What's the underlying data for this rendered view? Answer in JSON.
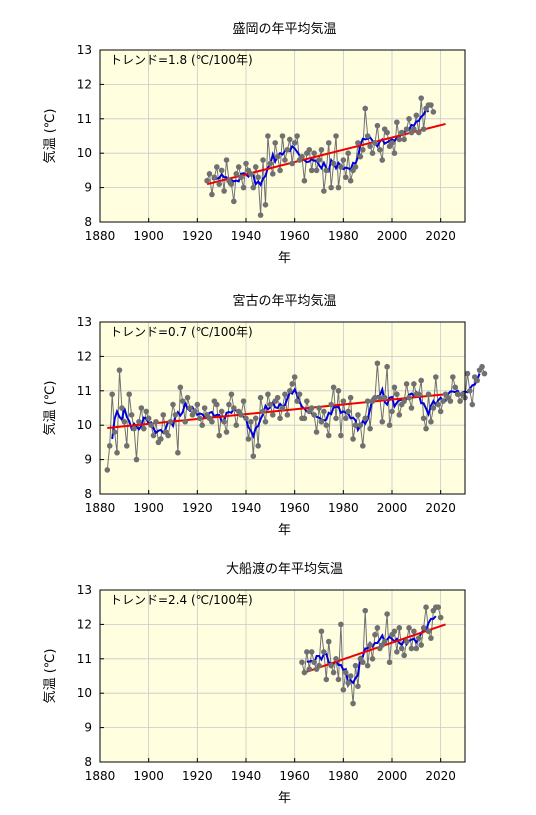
{
  "chart_data": [
    {
      "type": "line",
      "title": "盛岡の年平均気温",
      "trend_label": "トレンド=1.8 (℃/100年)",
      "xlabel": "年",
      "ylabel": "気温 (℃)",
      "xlim": [
        1880,
        2030
      ],
      "ylim": [
        8,
        13
      ],
      "xticks": [
        "1880",
        "1900",
        "1920",
        "1940",
        "1960",
        "1980",
        "2000",
        "2020"
      ],
      "yticks": [
        "8",
        "9",
        "10",
        "11",
        "12",
        "13"
      ],
      "grid": true,
      "colors": {
        "annual": "#707070",
        "moving_avg": "#0000dd",
        "trend": "#ee0000",
        "background": "#ffffe0"
      },
      "series": [
        {
          "kind": "annual",
          "x_start": 1924,
          "values": [
            9.2,
            9.4,
            8.8,
            9.3,
            9.6,
            9.1,
            9.5,
            8.9,
            9.8,
            9.2,
            9.1,
            8.6,
            9.4,
            9.6,
            9.3,
            9.0,
            9.7,
            9.5,
            9.4,
            9.0,
            9.6,
            9.3,
            8.2,
            9.8,
            8.5,
            10.5,
            9.7,
            9.4,
            10.3,
            9.9,
            9.5,
            10.5,
            9.8,
            10.1,
            10.4,
            9.7,
            10.3,
            10.5,
            9.8,
            9.9,
            9.2,
            10.0,
            10.1,
            9.5,
            10.0,
            9.5,
            9.8,
            10.1,
            8.9,
            9.5,
            10.3,
            9.0,
            9.7,
            10.5,
            9.0,
            9.6,
            9.8,
            9.3,
            10.0,
            9.2,
            9.5,
            9.6,
            10.3,
            9.9,
            10.1,
            11.3,
            10.5,
            10.2,
            10.0,
            10.3,
            10.8,
            10.1,
            9.8,
            10.7,
            10.6,
            10.2,
            10.3,
            10.0,
            10.9,
            10.4,
            10.6,
            10.4,
            10.7,
            11.0,
            10.6,
            10.7,
            11.1,
            10.6,
            11.6,
            10.7,
            11.3,
            11.4,
            11.4,
            11.2
          ]
        }
      ],
      "trend_line": {
        "x": [
          1924,
          2022
        ],
        "y": [
          9.1,
          10.85
        ]
      }
    },
    {
      "type": "line",
      "title": "宮古の年平均気温",
      "trend_label": "トレンド=0.7 (℃/100年)",
      "xlabel": "年",
      "ylabel": "気温 (℃)",
      "xlim": [
        1880,
        2030
      ],
      "ylim": [
        8,
        13
      ],
      "xticks": [
        "1880",
        "1900",
        "1920",
        "1940",
        "1960",
        "1980",
        "2000",
        "2020"
      ],
      "yticks": [
        "8",
        "9",
        "10",
        "11",
        "12",
        "13"
      ],
      "grid": true,
      "colors": {
        "annual": "#707070",
        "moving_avg": "#0000dd",
        "trend": "#ee0000",
        "background": "#ffffe0"
      },
      "series": [
        {
          "kind": "annual",
          "x_start": 1883,
          "values": [
            8.7,
            9.4,
            10.9,
            9.8,
            9.2,
            11.6,
            10.5,
            10.1,
            9.4,
            10.9,
            10.3,
            9.9,
            9.0,
            10.1,
            10.5,
            9.9,
            10.4,
            10.2,
            10.0,
            9.7,
            10.1,
            9.5,
            9.6,
            10.3,
            9.8,
            9.7,
            10.1,
            10.6,
            10.3,
            9.2,
            11.1,
            10.7,
            10.1,
            10.8,
            10.5,
            10.3,
            10.4,
            10.6,
            10.2,
            10.0,
            10.5,
            10.3,
            10.2,
            10.1,
            10.7,
            10.6,
            9.7,
            10.4,
            10.1,
            9.8,
            10.6,
            10.9,
            10.5,
            10.0,
            10.4,
            10.3,
            10.7,
            10.2,
            9.6,
            10.1,
            9.1,
            10.2,
            9.4,
            10.8,
            10.4,
            10.1,
            10.9,
            10.6,
            10.3,
            10.7,
            10.8,
            10.2,
            10.5,
            10.9,
            10.3,
            11.0,
            11.2,
            11.4,
            10.7,
            10.9,
            10.2,
            10.2,
            10.7,
            10.4,
            10.5,
            10.3,
            9.8,
            10.5,
            10.1,
            10.4,
            10.0,
            9.7,
            10.6,
            11.1,
            10.2,
            11.0,
            9.7,
            10.7,
            10.2,
            10.4,
            10.8,
            9.6,
            10.0,
            10.3,
            10.0,
            9.4,
            10.2,
            10.7,
            9.9,
            10.7,
            10.8,
            11.8,
            10.8,
            10.1,
            10.8,
            11.7,
            10.0,
            10.4,
            11.1,
            10.9,
            10.3,
            10.6,
            10.7,
            11.2,
            10.8,
            10.5,
            11.2,
            10.9,
            10.9,
            11.3,
            10.2,
            9.9,
            10.9,
            10.1,
            10.5,
            11.4,
            10.6,
            10.4,
            10.7,
            10.9,
            10.8,
            10.7,
            11.4,
            11.1,
            10.9,
            10.7,
            10.9,
            10.8,
            11.5,
            11.0,
            10.6,
            11.4,
            11.3,
            11.6,
            11.7,
            11.5
          ]
        }
      ],
      "trend_line": {
        "x": [
          1883,
          2022
        ],
        "y": [
          9.92,
          10.9
        ]
      }
    },
    {
      "type": "line",
      "title": "大船渡の年平均気温",
      "trend_label": "トレンド=2.4 (℃/100年)",
      "xlabel": "年",
      "ylabel": "気温 (℃)",
      "xlim": [
        1880,
        2030
      ],
      "ylim": [
        8,
        13
      ],
      "xticks": [
        "1880",
        "1900",
        "1920",
        "1940",
        "1960",
        "1980",
        "2000",
        "2020"
      ],
      "yticks": [
        "8",
        "9",
        "10",
        "11",
        "12",
        "13"
      ],
      "grid": true,
      "colors": {
        "annual": "#707070",
        "moving_avg": "#0000dd",
        "trend": "#ee0000",
        "background": "#ffffe0"
      },
      "series": [
        {
          "kind": "annual",
          "x_start": 1963,
          "values": [
            10.9,
            10.6,
            11.2,
            10.7,
            11.2,
            10.9,
            10.7,
            10.8,
            11.8,
            11.2,
            10.4,
            11.5,
            10.8,
            10.6,
            11.0,
            10.4,
            12.0,
            10.1,
            10.6,
            10.3,
            10.5,
            9.7,
            10.8,
            10.2,
            11.0,
            10.9,
            12.4,
            10.8,
            11.4,
            11.0,
            11.7,
            11.9,
            11.3,
            11.4,
            11.5,
            12.3,
            10.9,
            11.7,
            11.8,
            11.2,
            11.9,
            11.3,
            11.1,
            11.5,
            11.9,
            11.3,
            11.8,
            11.3,
            11.6,
            11.4,
            11.9,
            12.5,
            11.8,
            11.6,
            12.4,
            12.5,
            12.5,
            12.2
          ]
        }
      ],
      "trend_line": {
        "x": [
          1964,
          2022
        ],
        "y": [
          10.6,
          12.0
        ]
      }
    }
  ]
}
